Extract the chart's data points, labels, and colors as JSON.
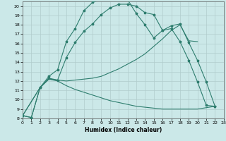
{
  "xlabel": "Humidex (Indice chaleur)",
  "xlim": [
    0,
    23
  ],
  "ylim": [
    8,
    20.5
  ],
  "xticks": [
    0,
    1,
    2,
    3,
    4,
    5,
    6,
    7,
    8,
    9,
    10,
    11,
    12,
    13,
    14,
    15,
    16,
    17,
    18,
    19,
    20,
    21,
    22,
    23
  ],
  "yticks": [
    8,
    9,
    10,
    11,
    12,
    13,
    14,
    15,
    16,
    17,
    18,
    19,
    20
  ],
  "background_color": "#cbe8e8",
  "grid_color": "#b0cccc",
  "line_color": "#2e7d6e",
  "curve1_x": [
    0,
    1,
    2,
    3,
    4,
    5,
    6,
    7,
    8,
    9,
    10,
    11,
    12,
    13,
    14,
    15,
    16,
    17,
    18,
    19,
    20,
    21,
    22
  ],
  "curve1_y": [
    8.3,
    8.1,
    11.3,
    12.3,
    12.1,
    14.5,
    16.1,
    17.3,
    18.1,
    19.1,
    19.8,
    20.2,
    20.2,
    20.0,
    19.3,
    19.1,
    17.4,
    17.9,
    18.1,
    16.1,
    14.2,
    11.9,
    9.3
  ],
  "curve2_x": [
    0,
    1,
    2,
    3,
    4,
    5,
    6,
    7,
    8,
    9,
    10,
    11,
    12,
    13,
    14,
    15,
    16,
    17,
    18,
    19,
    20,
    21,
    22
  ],
  "curve2_y": [
    8.3,
    8.1,
    11.3,
    12.5,
    13.2,
    16.2,
    17.6,
    19.5,
    20.4,
    20.7,
    20.9,
    21.0,
    20.7,
    19.2,
    18.0,
    16.6,
    17.4,
    17.6,
    16.2,
    14.2,
    11.9,
    9.4,
    9.3
  ],
  "curve3_x": [
    0,
    2,
    3,
    4,
    5,
    6,
    7,
    8,
    9,
    10,
    11,
    12,
    13,
    14,
    15,
    16,
    17,
    18,
    19,
    20
  ],
  "curve3_y": [
    8.3,
    11.3,
    12.2,
    12.1,
    12.0,
    12.1,
    12.2,
    12.3,
    12.5,
    12.9,
    13.3,
    13.8,
    14.3,
    14.9,
    15.7,
    16.5,
    17.4,
    18.0,
    16.3,
    16.2
  ],
  "curve4_x": [
    0,
    2,
    3,
    4,
    5,
    6,
    7,
    8,
    9,
    10,
    11,
    12,
    13,
    14,
    15,
    16,
    17,
    18,
    19,
    20,
    22
  ],
  "curve4_y": [
    8.3,
    11.3,
    12.2,
    12.0,
    11.5,
    11.1,
    10.8,
    10.5,
    10.2,
    9.9,
    9.7,
    9.5,
    9.3,
    9.2,
    9.1,
    9.0,
    9.0,
    9.0,
    9.0,
    9.0,
    9.3
  ]
}
